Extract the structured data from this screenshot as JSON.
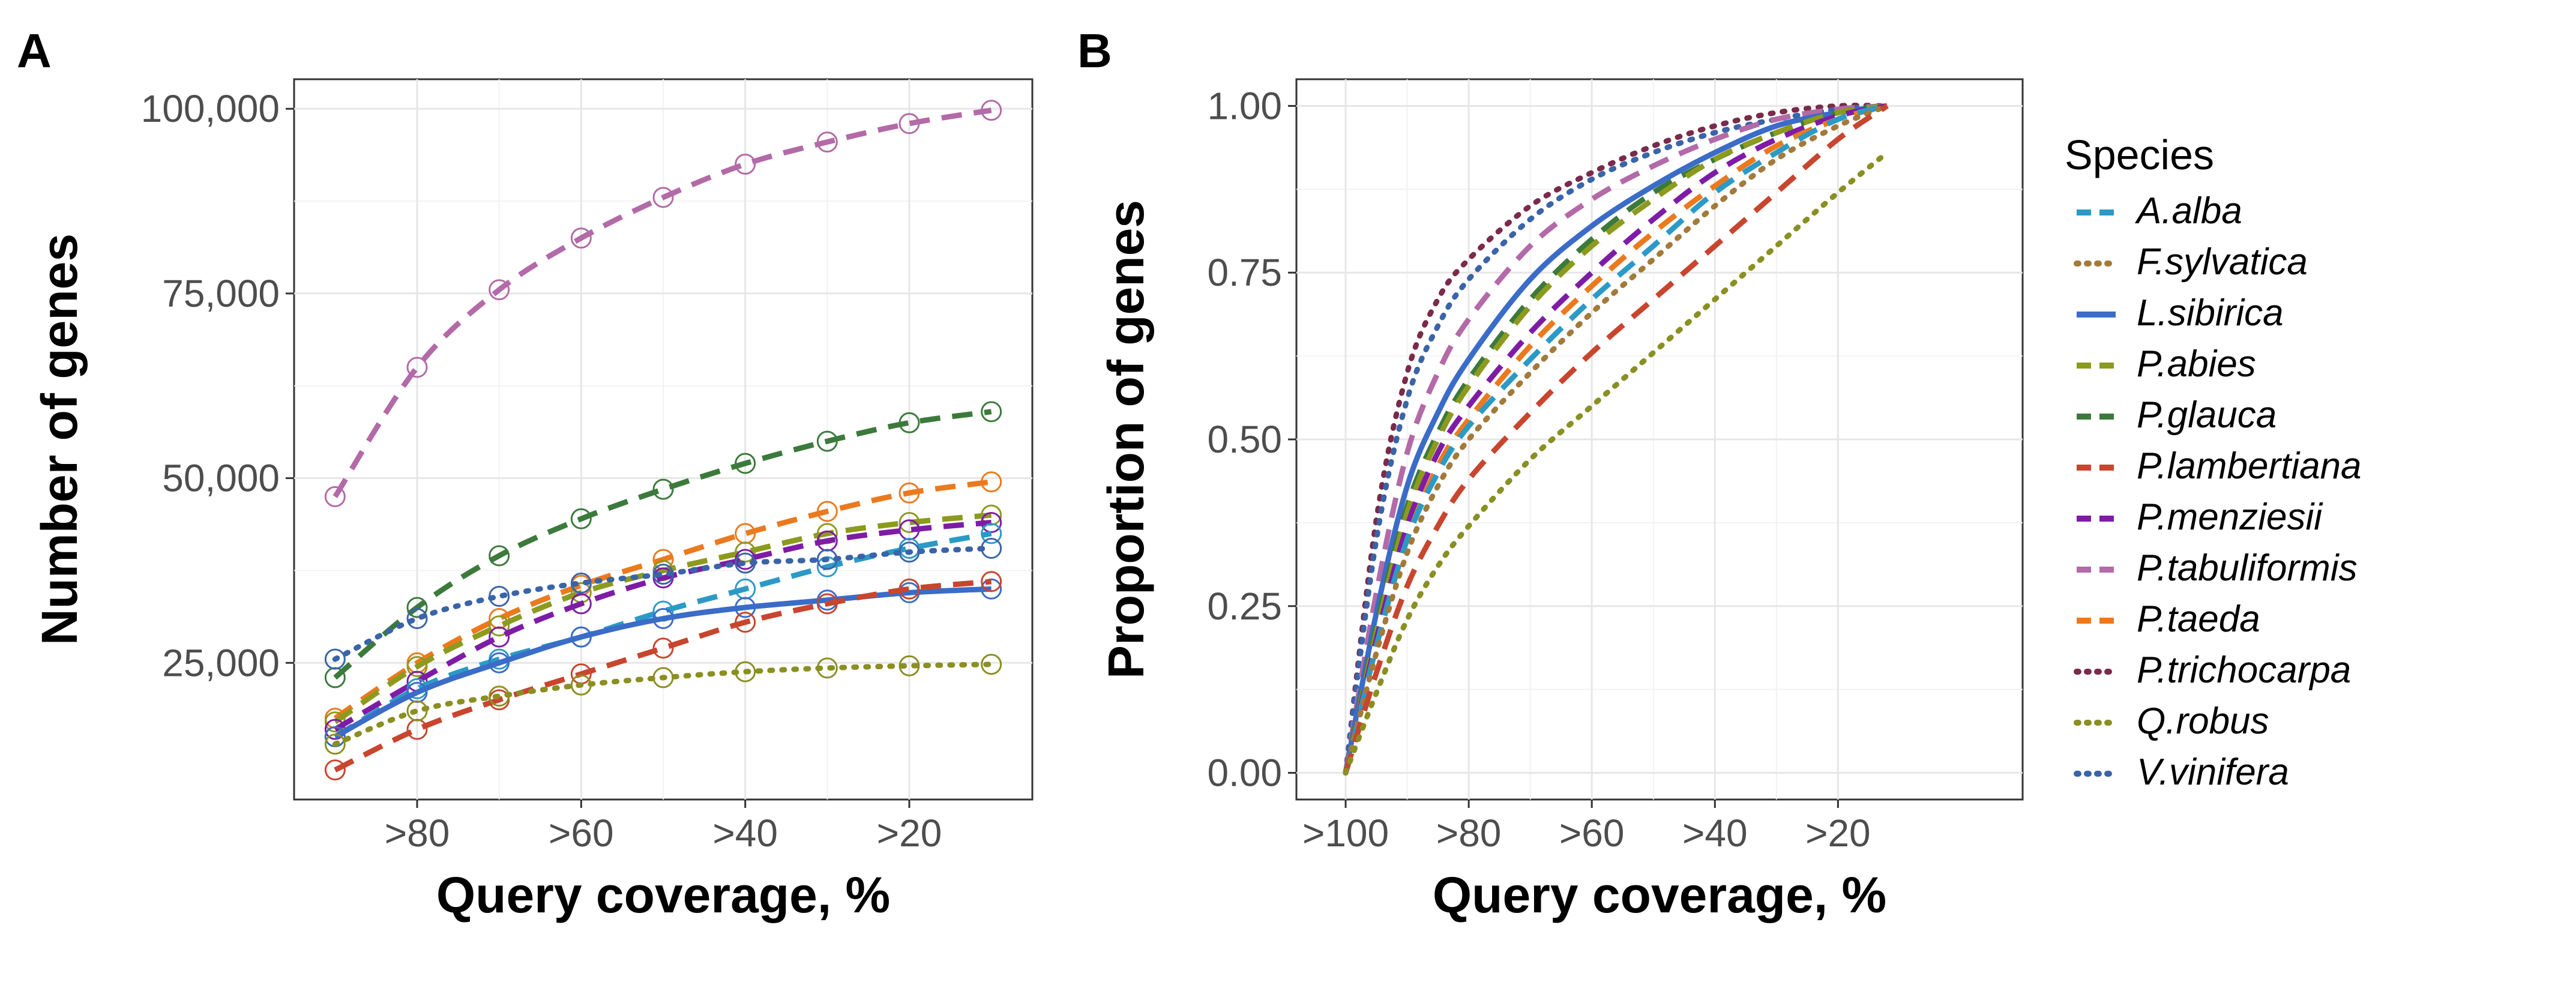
{
  "colors": {
    "A.alba": "#2B9AC7",
    "F.sylvatica": "#A27A3A",
    "L.sibirica": "#3A6CC8",
    "P.abies": "#8C9A1E",
    "P.glauca": "#3C7A3C",
    "P.lambertiana": "#C8452E",
    "P.menziesii": "#7E1CA6",
    "P.tabuliformis": "#B36AA8",
    "P.taeda": "#EB7A1E",
    "P.trichocarpa": "#7A2A4A",
    "Q.robus": "#8A8F22",
    "V.vinifera": "#3A64A8"
  },
  "legend": {
    "title": "Species",
    "items": [
      {
        "label": "A.alba",
        "dash": "dashed"
      },
      {
        "label": "F.sylvatica",
        "dash": "dotted"
      },
      {
        "label": "L.sibirica",
        "dash": "solid"
      },
      {
        "label": "P.abies",
        "dash": "dashed"
      },
      {
        "label": "P.glauca",
        "dash": "dashed"
      },
      {
        "label": "P.lambertiana",
        "dash": "dashed"
      },
      {
        "label": "P.menziesii",
        "dash": "dashed"
      },
      {
        "label": "P.tabuliformis",
        "dash": "dashed"
      },
      {
        "label": "P.taeda",
        "dash": "dashed"
      },
      {
        "label": "P.trichocarpa",
        "dash": "dotted"
      },
      {
        "label": "Q.robus",
        "dash": "dotted"
      },
      {
        "label": "V.vinifera",
        "dash": "dotted"
      }
    ]
  },
  "chart_data": [
    {
      "panel": "A",
      "type": "line",
      "xlabel": "Query coverage, %",
      "ylabel": "Number of genes",
      "x": [
        90,
        80,
        70,
        60,
        50,
        40,
        30,
        20,
        10
      ],
      "xlim": [
        95,
        5
      ],
      "ylim": [
        6500,
        104000
      ],
      "x_ticks": [
        {
          "value": 80,
          "label": ">80"
        },
        {
          "value": 60,
          "label": ">60"
        },
        {
          "value": 40,
          "label": ">40"
        },
        {
          "value": 20,
          "label": ">20"
        }
      ],
      "y_ticks": [
        {
          "value": 25000,
          "label": "25,000"
        },
        {
          "value": 50000,
          "label": "50,000"
        },
        {
          "value": 75000,
          "label": "75,000"
        },
        {
          "value": 100000,
          "label": "100,000"
        }
      ],
      "markers": "open-circle",
      "series": [
        {
          "name": "P.tabuliformis",
          "dash": "dashed",
          "values": [
            47500,
            65000,
            75500,
            82500,
            88000,
            92500,
            95500,
            98000,
            99800
          ]
        },
        {
          "name": "P.glauca",
          "dash": "dashed",
          "values": [
            23000,
            32500,
            39500,
            44500,
            48500,
            52000,
            55000,
            57500,
            59000
          ]
        },
        {
          "name": "P.taeda",
          "dash": "dashed",
          "values": [
            17500,
            25000,
            31000,
            35500,
            39000,
            42500,
            45500,
            48000,
            49500
          ]
        },
        {
          "name": "P.abies",
          "dash": "dashed",
          "values": [
            17000,
            24500,
            30000,
            34500,
            37500,
            40000,
            42500,
            44000,
            45000
          ]
        },
        {
          "name": "P.menziesii",
          "dash": "dashed",
          "values": [
            16000,
            22500,
            28500,
            33000,
            36500,
            39000,
            41500,
            43000,
            44000
          ]
        },
        {
          "name": "A.alba",
          "dash": "dashed",
          "values": [
            15000,
            21500,
            25500,
            28500,
            32000,
            35000,
            38000,
            40500,
            42500
          ]
        },
        {
          "name": "V.vinifera",
          "dash": "dotted",
          "values": [
            25500,
            31000,
            34000,
            35800,
            37000,
            38500,
            39000,
            40000,
            40500
          ]
        },
        {
          "name": "L.sibirica",
          "dash": "solid",
          "values": [
            15000,
            21000,
            25000,
            28500,
            31000,
            32500,
            33500,
            34500,
            35000
          ]
        },
        {
          "name": "P.lambertiana",
          "dash": "dashed",
          "values": [
            10500,
            16000,
            20000,
            23500,
            27000,
            30500,
            33000,
            35000,
            36000
          ]
        },
        {
          "name": "Q.robus",
          "dash": "dotted",
          "values": [
            14000,
            18500,
            20500,
            22000,
            23000,
            23800,
            24300,
            24600,
            24800
          ]
        }
      ]
    },
    {
      "panel": "B",
      "type": "line",
      "xlabel": "Query coverage, %",
      "ylabel": "Proportion of genes",
      "x": [
        100,
        95,
        90,
        85,
        80,
        70,
        60,
        50,
        40,
        30,
        20,
        12
      ],
      "xlim": [
        108,
        -10
      ],
      "ylim": [
        -0.04,
        1.04
      ],
      "x_ticks": [
        {
          "value": 100,
          "label": ">100"
        },
        {
          "value": 80,
          "label": ">80"
        },
        {
          "value": 60,
          "label": ">60"
        },
        {
          "value": 40,
          "label": ">40"
        },
        {
          "value": 20,
          "label": ">20"
        }
      ],
      "y_ticks": [
        {
          "value": 0.0,
          "label": "0.00"
        },
        {
          "value": 0.25,
          "label": "0.25"
        },
        {
          "value": 0.5,
          "label": "0.50"
        },
        {
          "value": 0.75,
          "label": "0.75"
        },
        {
          "value": 1.0,
          "label": "1.00"
        }
      ],
      "series": [
        {
          "name": "P.trichocarpa",
          "dash": "dotted",
          "values": [
            0.0,
            0.38,
            0.6,
            0.71,
            0.77,
            0.85,
            0.9,
            0.94,
            0.97,
            0.99,
            1.0,
            1.0
          ]
        },
        {
          "name": "V.vinifera",
          "dash": "dotted",
          "values": [
            0.0,
            0.35,
            0.56,
            0.67,
            0.74,
            0.83,
            0.89,
            0.93,
            0.96,
            0.98,
            0.995,
            1.0
          ]
        },
        {
          "name": "P.tabuliformis",
          "dash": "dashed",
          "values": [
            0.0,
            0.27,
            0.48,
            0.6,
            0.68,
            0.79,
            0.86,
            0.91,
            0.95,
            0.98,
            0.995,
            1.0
          ]
        },
        {
          "name": "L.sibirica",
          "dash": "solid",
          "values": [
            0.0,
            0.24,
            0.43,
            0.54,
            0.62,
            0.74,
            0.82,
            0.88,
            0.93,
            0.97,
            0.99,
            1.0
          ]
        },
        {
          "name": "P.glauca",
          "dash": "dashed",
          "values": [
            0.0,
            0.22,
            0.4,
            0.51,
            0.59,
            0.71,
            0.8,
            0.87,
            0.92,
            0.96,
            0.99,
            1.0
          ]
        },
        {
          "name": "P.abies",
          "dash": "dashed",
          "values": [
            0.0,
            0.21,
            0.39,
            0.5,
            0.58,
            0.7,
            0.79,
            0.86,
            0.92,
            0.96,
            0.99,
            1.0
          ]
        },
        {
          "name": "P.menziesii",
          "dash": "dashed",
          "values": [
            0.0,
            0.2,
            0.37,
            0.48,
            0.55,
            0.66,
            0.75,
            0.83,
            0.9,
            0.95,
            0.985,
            1.0
          ]
        },
        {
          "name": "P.taeda",
          "dash": "dashed",
          "values": [
            0.0,
            0.19,
            0.35,
            0.46,
            0.53,
            0.64,
            0.73,
            0.81,
            0.88,
            0.94,
            0.98,
            1.0
          ]
        },
        {
          "name": "A.alba",
          "dash": "dashed",
          "values": [
            0.0,
            0.19,
            0.35,
            0.45,
            0.52,
            0.62,
            0.71,
            0.79,
            0.87,
            0.93,
            0.98,
            1.0
          ]
        },
        {
          "name": "F.sylvatica",
          "dash": "dotted",
          "values": [
            0.0,
            0.18,
            0.33,
            0.43,
            0.5,
            0.6,
            0.69,
            0.77,
            0.85,
            0.92,
            0.97,
            1.0
          ]
        },
        {
          "name": "P.lambertiana",
          "dash": "dashed",
          "values": [
            0.0,
            0.15,
            0.28,
            0.37,
            0.44,
            0.54,
            0.63,
            0.71,
            0.79,
            0.87,
            0.95,
            1.0
          ]
        },
        {
          "name": "Q.robus",
          "dash": "dotted",
          "values": [
            0.0,
            0.12,
            0.23,
            0.31,
            0.37,
            0.47,
            0.55,
            0.63,
            0.71,
            0.79,
            0.87,
            0.93
          ]
        }
      ]
    }
  ],
  "panels": {
    "a": {
      "letter": "A",
      "xlabel": "Query coverage, %",
      "ylabel": "Number of genes"
    },
    "b": {
      "letter": "B",
      "xlabel": "Query coverage, %",
      "ylabel": "Proportion of genes"
    }
  }
}
